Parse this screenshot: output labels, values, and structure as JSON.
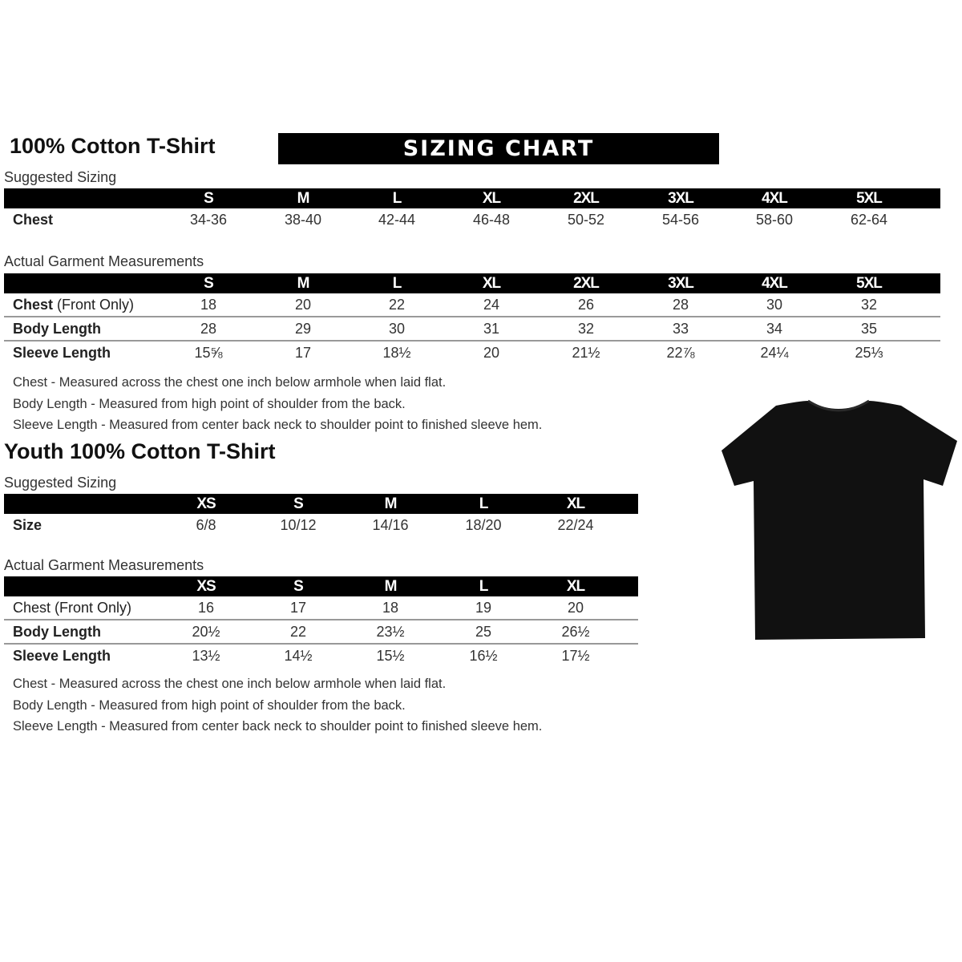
{
  "adult": {
    "title": "100% Cotton T-Shirt",
    "banner": "SIZING CHART",
    "suggested_label": "Suggested Sizing",
    "sizes": [
      "S",
      "M",
      "L",
      "XL",
      "2XL",
      "3XL",
      "4XL",
      "5XL"
    ],
    "suggested_rows": [
      {
        "label": "Chest",
        "values": [
          "34-36",
          "38-40",
          "42-44",
          "46-48",
          "50-52",
          "54-56",
          "58-60",
          "62-64"
        ]
      }
    ],
    "actual_label": "Actual Garment Measurements",
    "actual_rows": [
      {
        "label": "Chest",
        "label_extra": " (Front Only)",
        "values": [
          "18",
          "20",
          "22",
          "24",
          "26",
          "28",
          "30",
          "32"
        ]
      },
      {
        "label": "Body Length",
        "values": [
          "28",
          "29",
          "30",
          "31",
          "32",
          "33",
          "34",
          "35"
        ]
      },
      {
        "label": "Sleeve Length",
        "values": [
          "15⅝",
          "17",
          "18½",
          "20",
          "21½",
          "22⅞",
          "24¼",
          "25⅓"
        ]
      }
    ],
    "notes": [
      "Chest - Measured across the chest one inch below armhole when laid flat.",
      "Body Length - Measured from high point of shoulder from the back.",
      "Sleeve Length - Measured from center back neck to shoulder point to finished sleeve hem."
    ]
  },
  "youth": {
    "title": "Youth 100% Cotton T-Shirt",
    "suggested_label": "Suggested Sizing",
    "sizes": [
      "XS",
      "S",
      "M",
      "L",
      "XL"
    ],
    "suggested_rows": [
      {
        "label": "Size",
        "values": [
          "6/8",
          "10/12",
          "14/16",
          "18/20",
          "22/24"
        ]
      }
    ],
    "actual_label": "Actual Garment Measurements",
    "actual_rows": [
      {
        "label": "Chest (Front Only)",
        "values": [
          "16",
          "17",
          "18",
          "19",
          "20"
        ]
      },
      {
        "label": "Body Length",
        "values": [
          "20½",
          "22",
          "23½",
          "25",
          "26½"
        ]
      },
      {
        "label": "Sleeve Length",
        "values": [
          "13½",
          "14½",
          "15½",
          "16½",
          "17½"
        ]
      }
    ],
    "notes": [
      "Chest - Measured across the chest one inch below armhole when laid flat.",
      "Body Length - Measured from high point of shoulder from the back.",
      "Sleeve Length - Measured from center back neck to shoulder point to finished sleeve hem."
    ]
  },
  "colors": {
    "header_bg": "#000000",
    "shirt": "#111111"
  }
}
